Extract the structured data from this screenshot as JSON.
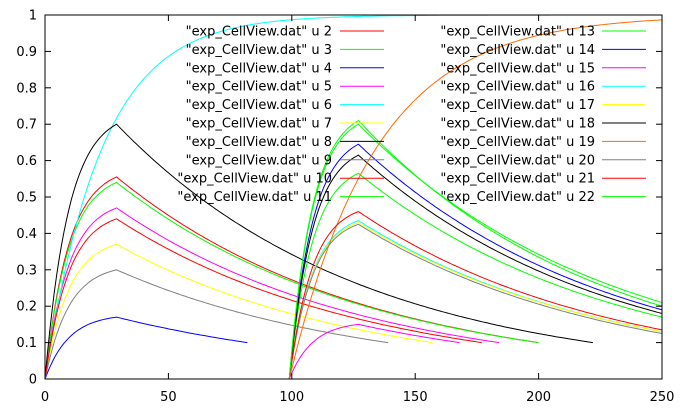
{
  "chart_data": {
    "type": "line",
    "title": "",
    "xlabel": "",
    "ylabel": "",
    "xlim": [
      0,
      250
    ],
    "ylim": [
      0,
      1
    ],
    "x_ticks": [
      0,
      50,
      100,
      150,
      200,
      250
    ],
    "x_tick_labels": [
      "0",
      "50",
      "100",
      "150",
      "200",
      "250"
    ],
    "y_ticks": [
      0,
      0.1,
      0.2,
      0.3,
      0.4,
      0.5,
      0.6,
      0.7,
      0.8,
      0.9,
      1
    ],
    "y_tick_labels": [
      "0",
      "0.1",
      "0.2",
      "0.3",
      "0.4",
      "0.5",
      "0.6",
      "0.7",
      "0.8",
      "0.9",
      "1"
    ],
    "grid": false,
    "legend_position": "top-right, two columns",
    "series": [
      {
        "name": "\"exp_CellView.dat\" u 2",
        "color": "#ff0000",
        "kind": "pulse",
        "t0": 0,
        "tp": 29,
        "peak": 0.555,
        "end": 200,
        "endVal": 0.1
      },
      {
        "name": "\"exp_CellView.dat\" u 3",
        "color": "#00ff00",
        "kind": "pulse",
        "t0": 0,
        "tp": 29,
        "peak": 0.54,
        "end": 200,
        "endVal": 0.1
      },
      {
        "name": "\"exp_CellView.dat\" u 4",
        "color": "#0000ff",
        "kind": "pulse",
        "t0": 0,
        "tp": 29,
        "peak": 0.17,
        "end": 82,
        "endVal": 0.1
      },
      {
        "name": "\"exp_CellView.dat\" u 5",
        "color": "#ff00ff",
        "kind": "pulse",
        "t0": 0,
        "tp": 29,
        "peak": 0.47,
        "end": 184,
        "endVal": 0.1
      },
      {
        "name": "\"exp_CellView.dat\" u 6",
        "color": "#00ffff",
        "kind": "sat",
        "t0": 0,
        "tau": 23,
        "end": 250,
        "endVal": 1.0
      },
      {
        "name": "\"exp_CellView.dat\" u 7",
        "color": "#ffff00",
        "kind": "pulse",
        "t0": 0,
        "tp": 29,
        "peak": 0.37,
        "end": 157,
        "endVal": 0.1
      },
      {
        "name": "\"exp_CellView.dat\" u 8",
        "color": "#000000",
        "kind": "pulse",
        "t0": 0,
        "tp": 29,
        "peak": 0.7,
        "end": 222,
        "endVal": 0.1
      },
      {
        "name": "\"exp_CellView.dat\" u 9",
        "color": "#808080",
        "kind": "pulse",
        "t0": 0,
        "tp": 29,
        "peak": 0.3,
        "end": 139,
        "endVal": 0.1
      },
      {
        "name": "\"exp_CellView.dat\" u 10",
        "color": "#ff0000",
        "kind": "pulse",
        "t0": 0,
        "tp": 29,
        "peak": 0.44,
        "end": 177,
        "endVal": 0.1
      },
      {
        "name": "\"exp_CellView.dat\" u 11",
        "color": "#00ff00",
        "kind": "pulse",
        "t0": 99,
        "tp": 127,
        "peak": 0.71,
        "end": 250,
        "endVal": 0.2
      },
      {
        "name": "\"exp_CellView.dat\" u 13",
        "color": "#00ff00",
        "kind": "pulse",
        "t0": 99,
        "tp": 127,
        "peak": 0.565,
        "end": 250,
        "endVal": 0.17
      },
      {
        "name": "\"exp_CellView.dat\" u 14",
        "color": "#0000ff",
        "kind": "pulse",
        "t0": 99,
        "tp": 127,
        "peak": 0.645,
        "end": 250,
        "endVal": 0.19
      },
      {
        "name": "\"exp_CellView.dat\" u 15",
        "color": "#ff00ff",
        "kind": "pulse",
        "t0": 99,
        "tp": 127,
        "peak": 0.15,
        "end": 168,
        "endVal": 0.1
      },
      {
        "name": "\"exp_CellView.dat\" u 16",
        "color": "#00ffff",
        "kind": "pulse",
        "t0": 99,
        "tp": 127,
        "peak": 0.435,
        "end": 250,
        "endVal": 0.13
      },
      {
        "name": "\"exp_CellView.dat\" u 17",
        "color": "#ffff00",
        "kind": "pulse",
        "t0": 99,
        "tp": 127,
        "peak": 0.43,
        "end": 250,
        "endVal": 0.13
      },
      {
        "name": "\"exp_CellView.dat\" u 18",
        "color": "#000000",
        "kind": "pulse",
        "t0": 99,
        "tp": 127,
        "peak": 0.615,
        "end": 250,
        "endVal": 0.18
      },
      {
        "name": "\"exp_CellView.dat\" u 19",
        "color": "#ff6a00",
        "kind": "sat",
        "t0": 99,
        "tau": 35,
        "end": 250,
        "endVal": 1.0
      },
      {
        "name": "\"exp_CellView.dat\" u 20",
        "color": "#808080",
        "kind": "pulse",
        "t0": 99,
        "tp": 127,
        "peak": 0.425,
        "end": 250,
        "endVal": 0.125
      },
      {
        "name": "\"exp_CellView.dat\" u 21",
        "color": "#ff0000",
        "kind": "pulse",
        "t0": 99,
        "tp": 127,
        "peak": 0.46,
        "end": 250,
        "endVal": 0.135
      },
      {
        "name": "\"exp_CellView.dat\" u 22",
        "color": "#00ff00",
        "kind": "pulse",
        "t0": 99,
        "tp": 127,
        "peak": 0.7,
        "end": 250,
        "endVal": 0.21
      }
    ]
  }
}
